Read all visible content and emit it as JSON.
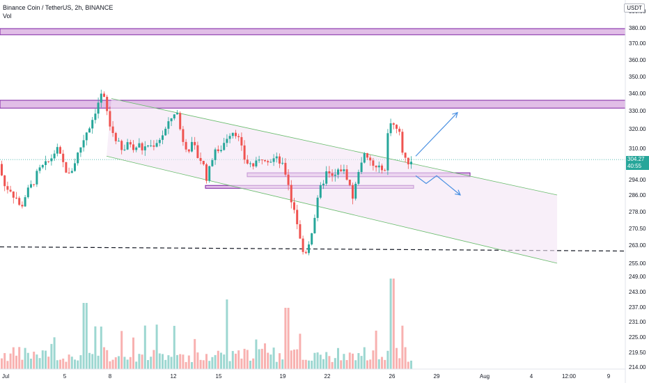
{
  "legend": {
    "symbol": "Binance Coin / TetherUS, 2h, BINANCE",
    "volume_label": "Vol"
  },
  "currency": "USDT",
  "last_price": {
    "value": "304.27",
    "countdown": "40:55",
    "color": "#26a69a"
  },
  "colors": {
    "up": "#26a69a",
    "down": "#ef5350",
    "zone_fill": "#e1bee7",
    "zone_border": "#7b1fa2",
    "channel_line": "#66bb6a",
    "channel_fill": "#f3e5f5",
    "arrow": "#4a90e2",
    "support_dash": "#131722"
  },
  "chart_data": {
    "type": "candlestick",
    "title": "Binance Coin / TetherUS, 2h, BINANCE",
    "currency": "USDT",
    "timeframe": "2h",
    "ylim": [
      214,
      390
    ],
    "y_ticks": [
      "390.00",
      "380.00",
      "370.00",
      "360.00",
      "350.00",
      "340.00",
      "330.00",
      "320.00",
      "310.00",
      "294.00",
      "286.00",
      "278.00",
      "270.50",
      "263.00",
      "255.00",
      "249.00",
      "243.00",
      "237.00",
      "231.00",
      "225.00",
      "219.50",
      "214.00"
    ],
    "x_ticks": [
      "Jul",
      "5",
      "8",
      "12",
      "15",
      "19",
      "22",
      "26",
      "29",
      "Aug",
      "4",
      "12:00",
      "9"
    ],
    "price_path": [
      [
        1,
        302
      ],
      [
        4,
        298
      ],
      [
        8,
        292
      ],
      [
        12,
        288
      ],
      [
        16,
        292
      ],
      [
        20,
        285
      ],
      [
        24,
        287
      ],
      [
        28,
        283
      ],
      [
        32,
        279
      ],
      [
        38,
        285
      ],
      [
        44,
        289
      ],
      [
        50,
        292
      ],
      [
        56,
        297
      ],
      [
        62,
        300
      ],
      [
        70,
        302
      ],
      [
        78,
        306
      ],
      [
        84,
        310
      ],
      [
        90,
        305
      ],
      [
        96,
        300
      ],
      [
        102,
        296
      ],
      [
        108,
        301
      ],
      [
        114,
        307
      ],
      [
        120,
        312
      ],
      [
        126,
        318
      ],
      [
        132,
        322
      ],
      [
        138,
        328
      ],
      [
        143,
        334
      ],
      [
        148,
        339
      ],
      [
        152,
        337
      ],
      [
        156,
        330
      ],
      [
        160,
        322
      ],
      [
        166,
        317
      ],
      [
        172,
        313
      ],
      [
        178,
        308
      ],
      [
        184,
        311
      ],
      [
        190,
        313
      ],
      [
        196,
        310
      ],
      [
        202,
        312
      ],
      [
        208,
        309
      ],
      [
        214,
        312
      ],
      [
        220,
        311
      ],
      [
        226,
        313
      ],
      [
        232,
        315
      ],
      [
        238,
        318
      ],
      [
        244,
        322
      ],
      [
        250,
        327
      ],
      [
        256,
        331
      ],
      [
        260,
        322
      ],
      [
        264,
        316
      ],
      [
        268,
        312
      ],
      [
        274,
        310
      ],
      [
        280,
        312
      ],
      [
        286,
        306
      ],
      [
        292,
        304
      ],
      [
        296,
        300
      ],
      [
        300,
        294
      ],
      [
        304,
        300
      ],
      [
        308,
        306
      ],
      [
        312,
        310
      ],
      [
        316,
        307
      ],
      [
        320,
        310
      ],
      [
        326,
        314
      ],
      [
        330,
        317
      ],
      [
        336,
        319
      ],
      [
        342,
        318
      ],
      [
        348,
        312
      ],
      [
        352,
        306
      ],
      [
        356,
        303
      ],
      [
        362,
        302
      ],
      [
        368,
        301
      ],
      [
        374,
        303
      ],
      [
        380,
        306
      ],
      [
        386,
        305
      ],
      [
        392,
        304
      ],
      [
        398,
        305
      ],
      [
        404,
        303
      ],
      [
        408,
        301
      ],
      [
        412,
        298
      ],
      [
        416,
        294
      ],
      [
        420,
        284
      ],
      [
        424,
        281
      ],
      [
        428,
        276
      ],
      [
        432,
        268
      ],
      [
        436,
        261
      ],
      [
        440,
        259
      ],
      [
        444,
        262
      ],
      [
        448,
        266
      ],
      [
        452,
        272
      ],
      [
        456,
        278
      ],
      [
        460,
        285
      ],
      [
        464,
        291
      ],
      [
        468,
        294
      ],
      [
        472,
        298
      ],
      [
        476,
        296
      ],
      [
        480,
        295
      ],
      [
        484,
        296
      ],
      [
        488,
        298
      ],
      [
        494,
        300
      ],
      [
        498,
        297
      ],
      [
        502,
        295
      ],
      [
        506,
        289
      ],
      [
        510,
        284
      ],
      [
        514,
        292
      ],
      [
        518,
        300
      ],
      [
        522,
        304
      ],
      [
        526,
        306
      ],
      [
        530,
        304
      ],
      [
        536,
        303
      ],
      [
        540,
        300
      ],
      [
        546,
        299
      ],
      [
        552,
        301
      ],
      [
        556,
        298
      ],
      [
        558,
        306
      ],
      [
        560,
        320
      ],
      [
        563,
        325
      ],
      [
        568,
        322
      ],
      [
        572,
        320
      ],
      [
        576,
        318
      ],
      [
        580,
        310
      ],
      [
        584,
        304
      ],
      [
        587,
        302
      ],
      [
        590,
        304
      ]
    ],
    "resistance_zones": [
      [
        375.5,
        379.5
      ],
      [
        331.5,
        336
      ]
    ],
    "support_zones": [
      [
        295.5,
        297.5
      ],
      [
        289.5,
        291
      ]
    ],
    "dashed_support": 261,
    "descending_channel": {
      "upper": [
        [
          160,
          337
        ],
        [
          800,
          286
        ]
      ],
      "lower": [
        [
          153,
          306
        ],
        [
          800,
          255
        ]
      ]
    },
    "scenario_arrows": [
      {
        "label": "bullish",
        "points": [
          [
            597,
            306
          ],
          [
            657,
            329
          ]
        ]
      },
      {
        "label": "bearish",
        "points": [
          [
            597,
            296
          ],
          [
            612,
            292
          ],
          [
            627,
            296
          ],
          [
            661,
            286
          ]
        ]
      }
    ],
    "volume_bars": 140
  }
}
